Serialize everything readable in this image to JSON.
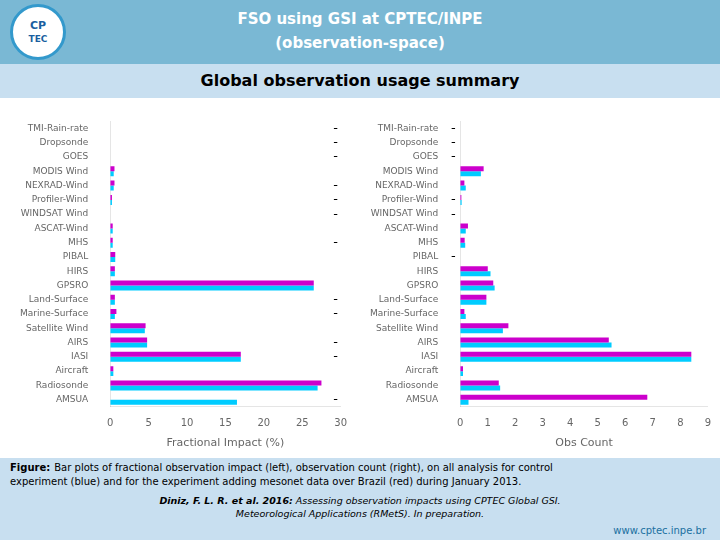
{
  "title": "Global observation usage summary",
  "annotations": [
    "FSO using GSI at CPTEC/INPE",
    "(observation-space)",
    "CP",
    "TEC",
    "Figure:",
    "Bar plots of fractional observation impact (left), observation count (right), on all analysis for control\nexperiment (blue) and for the experiment adding mesonet data over Brazil (red) during January 2013.",
    "Diniz, F. L. R. et al. 2016:",
    "Assessing observation impacts using CPTEC Global GSI.\nMeteorological Applications (RMetS). In preparation.",
    "www.cptec.inpe.br"
  ],
  "chart_data": [
    {
      "type": "bar",
      "orientation": "horizontal",
      "categories": [
        "TMI-Rain-rate",
        "Dropsonde",
        "GOES",
        "MODIS Wind",
        "NEXRAD-Wind",
        "Profiler-Wind",
        "WINDSAT Wind",
        "ASCAT-Wind",
        "MHS",
        "PIBAL",
        "HIRS",
        "GPSRO",
        "Land-Surface",
        "Marine-Surface",
        "Satellite Wind",
        "AIRS",
        "IASI",
        "Aircraft",
        "Radiosonde",
        "AMSUA"
      ],
      "series": [
        {
          "color": "#CC00CC",
          "values": [
            0,
            0,
            0,
            0.55,
            0.55,
            0.22,
            0,
            0.32,
            0.32,
            0.65,
            0.6,
            26.5,
            0.6,
            0.8,
            4.6,
            4.8,
            17.0,
            0.4,
            27.5,
            0
          ]
        },
        {
          "color": "#00CCFF",
          "values": [
            0,
            0,
            0,
            0.45,
            0.45,
            0.22,
            0,
            0.32,
            0.32,
            0.65,
            0.6,
            26.5,
            0.6,
            0.6,
            4.5,
            4.8,
            17.0,
            0.4,
            27.0,
            16.5
          ]
        }
      ],
      "xlabel": "Fractional Impact (%)",
      "xlim": [
        0,
        30
      ],
      "xticks": [
        0,
        5,
        10,
        15,
        20,
        25,
        30
      ],
      "grid": false,
      "annotations": [
        {
          "text": "-",
          "category": "TMI-Rain-rate"
        },
        {
          "text": "-",
          "category": "Dropsonde"
        },
        {
          "text": "-",
          "category": "GOES"
        },
        {
          "text": "-",
          "category": "NEXRAD-Wind"
        },
        {
          "text": "-",
          "category": "Profiler-Wind"
        },
        {
          "text": "-",
          "category": "WINDSAT Wind"
        },
        {
          "text": "-",
          "category": "MHS"
        },
        {
          "text": "-",
          "category": "Land-Surface"
        },
        {
          "text": "-",
          "category": "Marine-Surface"
        },
        {
          "text": "-",
          "category": "AIRS"
        },
        {
          "text": "-",
          "category": "IASI"
        },
        {
          "text": "-",
          "category": "AMSUA"
        }
      ]
    },
    {
      "type": "bar",
      "orientation": "horizontal",
      "categories": [
        "TMI-Rain-rate",
        "Dropsonde",
        "GOES",
        "MODIS Wind",
        "NEXRAD-Wind",
        "Profiler-Wind",
        "WINDSAT Wind",
        "ASCAT-Wind",
        "MHS",
        "PIBAL",
        "HIRS",
        "GPSRO",
        "Land-Surface",
        "Marine-Surface",
        "Satellite Wind",
        "AIRS",
        "IASI",
        "Aircraft",
        "Radiosonde",
        "AMSUA"
      ],
      "series": [
        {
          "color": "#CC00CC",
          "values": [
            0,
            0,
            0,
            0.85,
            0.15,
            0.04,
            0.0,
            0.28,
            0.16,
            0.0,
            1.0,
            1.2,
            0.95,
            0.15,
            1.75,
            5.4,
            8.4,
            0.1,
            1.4,
            6.8
          ]
        },
        {
          "color": "#00CCFF",
          "values": [
            0,
            0,
            0,
            0.75,
            0.2,
            0.05,
            0.0,
            0.2,
            0.18,
            0.0,
            1.1,
            1.25,
            0.95,
            0.2,
            1.55,
            5.5,
            8.4,
            0.1,
            1.45,
            0.3
          ]
        }
      ],
      "xlabel": "Obs Count",
      "xlim": [
        0,
        9
      ],
      "xticks": [
        0,
        1,
        2,
        3,
        4,
        5,
        6,
        7,
        8,
        9
      ],
      "grid": false,
      "annotations": [
        {
          "text": "-",
          "category": "TMI-Rain-rate"
        },
        {
          "text": "-",
          "category": "Dropsonde"
        },
        {
          "text": "-",
          "category": "GOES"
        },
        {
          "text": "-",
          "category": "Profiler-Wind"
        },
        {
          "text": "-",
          "category": "WINDSAT Wind"
        },
        {
          "text": "-",
          "category": "PIBAL"
        }
      ]
    }
  ]
}
